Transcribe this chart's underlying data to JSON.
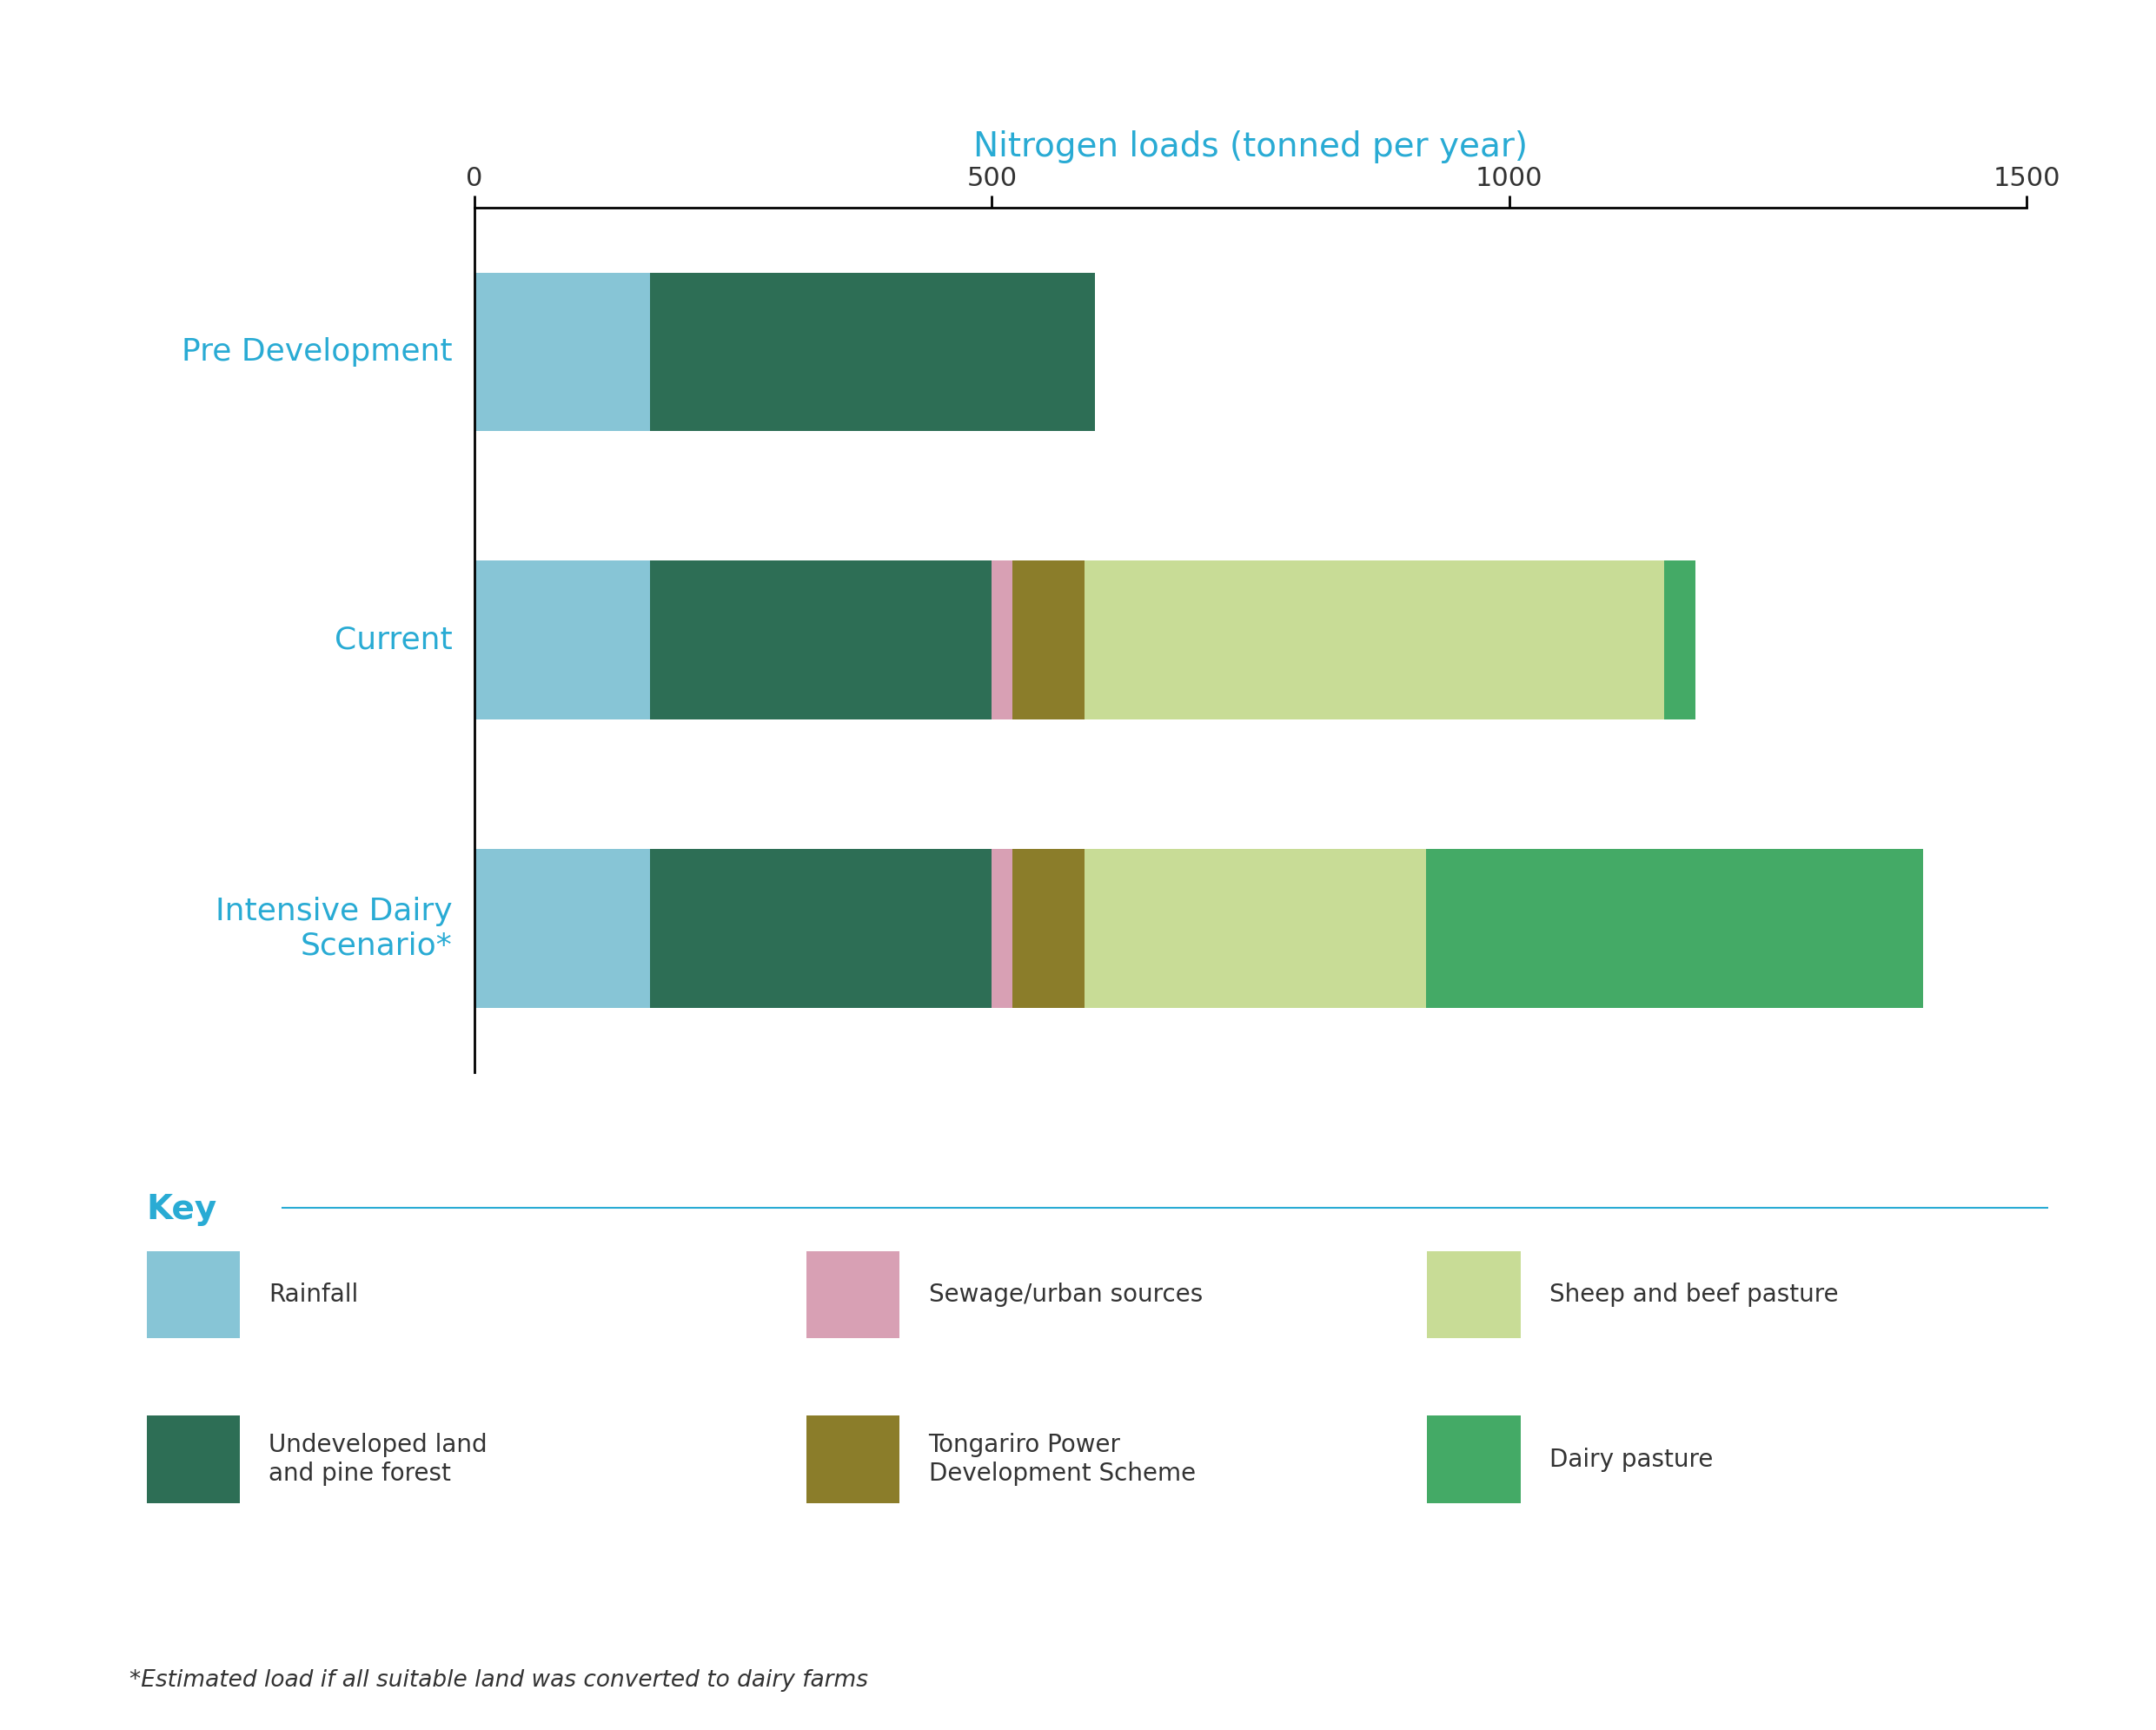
{
  "title": "Nitrogen loads (tonned per year)",
  "title_color": "#29ABD4",
  "background_color": "#ffffff",
  "categories": [
    "Pre Development",
    "Current",
    "Intensive Dairy\nScenario*"
  ],
  "segments": {
    "Rainfall": {
      "values": [
        170,
        170,
        170
      ],
      "color": "#87C5D6"
    },
    "Undeveloped land\nand pine forest": {
      "values": [
        430,
        330,
        330
      ],
      "color": "#2D6E55"
    },
    "Sewage/urban sources": {
      "values": [
        0,
        20,
        20
      ],
      "color": "#D8A0B4"
    },
    "Tongariro Power\nDevelopment Scheme": {
      "values": [
        0,
        70,
        70
      ],
      "color": "#8B7D2A"
    },
    "Sheep and beef pasture": {
      "values": [
        0,
        560,
        330
      ],
      "color": "#C8DC96"
    },
    "Dairy pasture": {
      "values": [
        0,
        30,
        480
      ],
      "color": "#44AA66"
    }
  },
  "xlim": [
    0,
    1500
  ],
  "xticks": [
    0,
    500,
    1000,
    1500
  ],
  "key_title": "Key",
  "footnote": "*Estimated load if all suitable land was converted to dairy farms",
  "legend_items": [
    {
      "label": "Rainfall",
      "color": "#87C5D6"
    },
    {
      "label": "Sewage/urban sources",
      "color": "#D8A0B4"
    },
    {
      "label": "Sheep and beef pasture",
      "color": "#C8DC96"
    },
    {
      "label": "Undeveloped land\nand pine forest",
      "color": "#2D6E55"
    },
    {
      "label": "Tongariro Power\nDevelopment Scheme",
      "color": "#8B7D2A"
    },
    {
      "label": "Dairy pasture",
      "color": "#44AA66"
    }
  ]
}
